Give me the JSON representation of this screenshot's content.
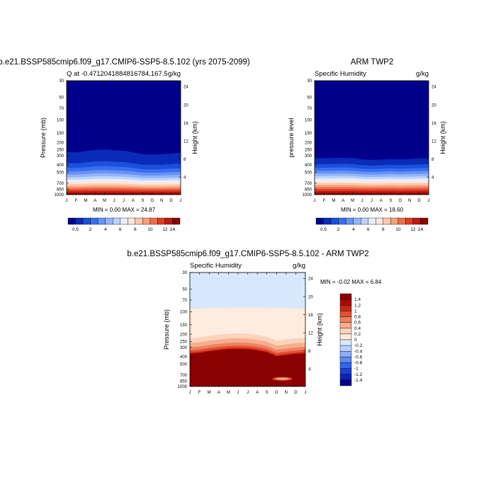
{
  "colors": {
    "seq": [
      "#00008b",
      "#0a2bb8",
      "#1a50dc",
      "#3a6ef0",
      "#6792f6",
      "#93b4fa",
      "#bdd5fb",
      "#e6effd",
      "#fde7da",
      "#fbc9ad",
      "#f7a07d",
      "#ee6e4c",
      "#e03c24",
      "#bc1b10",
      "#8b0000"
    ],
    "diff": [
      "#00008b",
      "#0e20b0",
      "#1d40d2",
      "#3764ea",
      "#5e8af4",
      "#8aaef8",
      "#b6cffb",
      "#d8e8fc",
      "#fdecdf",
      "#fbd3bb",
      "#f6ae8f",
      "#ee8262",
      "#e05233",
      "#c92716",
      "#a50e06",
      "#8b0000"
    ]
  },
  "chart_data": [
    {
      "type": "heatmap",
      "title": "b.e21.BSSP585cmip6.f09_g17.CMIP6-SSP5-8.5.102 (yrs 2075-2099)",
      "left_label": "Q at -0.471204188481678­4,167.5",
      "left_label_text": "Q at -0.4712041884816784,167.5",
      "right_label": "g/kg",
      "ylabel": "Pressure (mb)",
      "ylabel_right": "Height (km)",
      "x_ticks": [
        "J",
        "F",
        "M",
        "A",
        "M",
        "J",
        "J",
        "A",
        "S",
        "O",
        "N",
        "D",
        "J"
      ],
      "y_ticks": [
        "30",
        "50",
        "70",
        "100",
        "150",
        "200",
        "250",
        "300",
        "400",
        "500",
        "700",
        "850",
        "1000"
      ],
      "height_ticks": [
        "24",
        "20",
        "16",
        "12",
        "8",
        "4"
      ],
      "minmax": "MIN =   0.00 MAX =  24.87",
      "profile_hpa": [
        270,
        272,
        262,
        252,
        250,
        254,
        258,
        272,
        288,
        290,
        288,
        282,
        276
      ],
      "profile_scale": 4.3,
      "colorbar_labels": [
        "0.5",
        "2",
        "4",
        "6",
        "8",
        "10",
        "12",
        "14"
      ]
    },
    {
      "type": "heatmap",
      "title": "ARM TWP2",
      "left_label": "Specific Humidity",
      "right_label": "g/kg",
      "ylabel": "pressure level",
      "ylabel_right": "Height (km)",
      "x_ticks": [
        "J",
        "F",
        "M",
        "A",
        "M",
        "J",
        "J",
        "A",
        "S",
        "O",
        "N",
        "D",
        "J"
      ],
      "y_ticks": [
        "30",
        "50",
        "70",
        "100",
        "150",
        "200",
        "250",
        "300",
        "400",
        "500",
        "700",
        "850",
        "1000"
      ],
      "height_ticks": [
        "24",
        "20",
        "16",
        "12",
        "8",
        "4"
      ],
      "minmax": "MIN =   0.00 MAX =  18.60",
      "profile_hpa": [
        325,
        326,
        324,
        322,
        326,
        338,
        344,
        340,
        334,
        338,
        334,
        330,
        327
      ],
      "profile_scale": 3.2,
      "colorbar_labels": [
        "0.5",
        "2",
        "4",
        "6",
        "8",
        "10",
        "12",
        "14"
      ]
    },
    {
      "type": "heatmap",
      "title": "b.e21.BSSP585cmip6.f09_g17.CMIP6-SSP5-8.5.102 - ARM TWP2",
      "left_label": "Specific Humidity",
      "right_label": "g/kg",
      "ylabel": "Pressure (mb)",
      "ylabel_right": "Height (km)",
      "x_ticks": [
        "J",
        "F",
        "M",
        "A",
        "M",
        "J",
        "J",
        "A",
        "S",
        "O",
        "N",
        "D",
        "J"
      ],
      "y_ticks": [
        "30",
        "50",
        "70",
        "100",
        "150",
        "200",
        "250",
        "300",
        "400",
        "500",
        "700",
        "850",
        "1000"
      ],
      "height_ticks": [
        "24",
        "20",
        "16",
        "12",
        "8",
        "4"
      ],
      "minmax": "MIN = -0.02 MAX =   6.84",
      "colorbar_labels": [
        "1.4",
        "1.2",
        "1",
        "0.8",
        "0.6",
        "0.4",
        "0.2",
        "0",
        "-0.2",
        "-0.4",
        "-0.6",
        "-0.8",
        "-1",
        "-1.2",
        "-1.4"
      ],
      "diff_light_top_hpa": 92,
      "diff_boundary_hpa": [
        365,
        356,
        340,
        328,
        318,
        316,
        318,
        330,
        350,
        395,
        380,
        368,
        360
      ]
    }
  ]
}
